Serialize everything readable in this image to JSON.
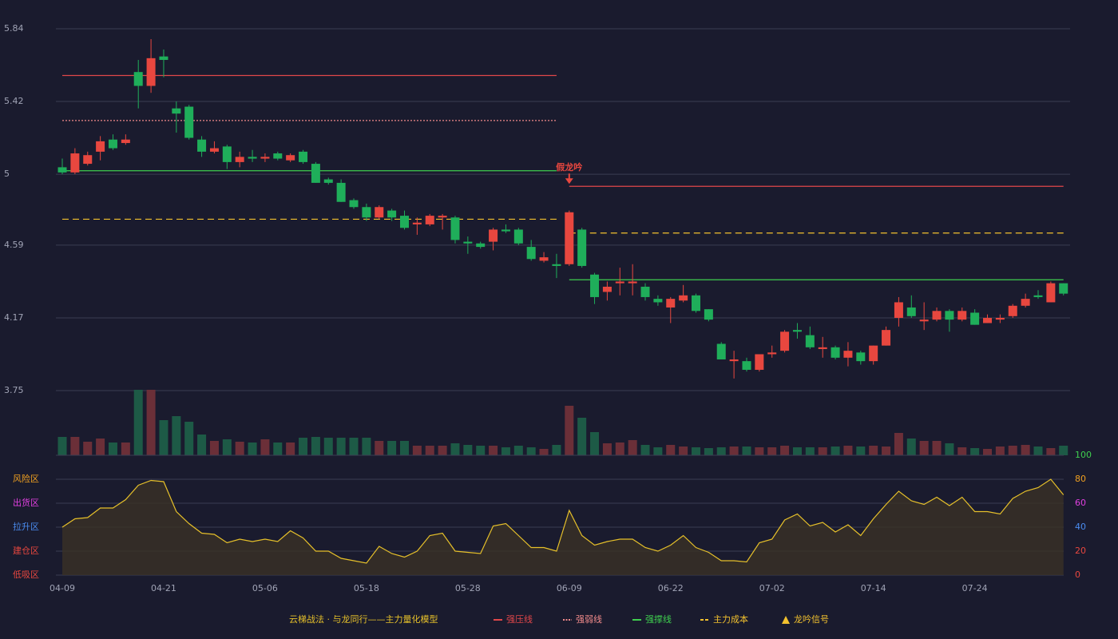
{
  "chart_data": [
    {
      "type": "candlestick",
      "categories": [
        "04-09",
        null,
        null,
        null,
        null,
        null,
        null,
        null,
        "04-21",
        null,
        null,
        null,
        null,
        null,
        null,
        null,
        "05-06",
        null,
        null,
        null,
        null,
        null,
        null,
        null,
        "05-18",
        null,
        null,
        null,
        null,
        null,
        null,
        null,
        "05-28",
        null,
        null,
        null,
        null,
        null,
        null,
        null,
        "06-09",
        null,
        null,
        null,
        null,
        null,
        null,
        null,
        "06-22",
        null,
        null,
        null,
        null,
        null,
        null,
        null,
        "07-02",
        null,
        null,
        null,
        null,
        null,
        null,
        null,
        "07-14",
        null,
        null,
        null,
        null,
        null,
        null,
        null,
        "07-24",
        null,
        null,
        null,
        null,
        null,
        null,
        null
      ],
      "open": [
        5.04,
        5.01,
        5.06,
        5.13,
        5.2,
        5.18,
        5.59,
        5.51,
        5.68,
        5.38,
        5.39,
        5.2,
        5.13,
        5.16,
        5.07,
        5.1,
        5.09,
        5.12,
        5.08,
        5.13,
        5.06,
        4.97,
        4.95,
        4.85,
        4.81,
        4.75,
        4.79,
        4.76,
        4.71,
        4.71,
        4.75,
        4.75,
        4.61,
        4.6,
        4.61,
        4.68,
        4.68,
        4.58,
        4.5,
        4.48,
        4.48,
        4.68,
        4.42,
        4.32,
        4.37,
        4.37,
        4.35,
        4.28,
        4.23,
        4.27,
        4.3,
        4.22,
        4.02,
        3.92,
        3.92,
        3.87,
        3.96,
        3.98,
        4.1,
        4.07,
        3.99,
        4.0,
        3.94,
        3.97,
        3.92,
        4.01,
        4.17,
        4.23,
        4.15,
        4.16,
        4.21,
        4.16,
        4.2,
        4.14,
        4.16,
        4.18,
        4.24,
        4.3,
        4.26,
        4.37
      ],
      "high": [
        5.09,
        5.15,
        5.13,
        5.22,
        5.23,
        5.23,
        5.66,
        5.78,
        5.72,
        5.42,
        5.4,
        5.22,
        5.19,
        5.17,
        5.13,
        5.14,
        5.12,
        5.13,
        5.12,
        5.14,
        5.07,
        4.98,
        4.97,
        4.86,
        4.83,
        4.82,
        4.8,
        4.79,
        4.75,
        4.77,
        4.77,
        4.76,
        4.64,
        4.61,
        4.69,
        4.71,
        4.69,
        4.62,
        4.55,
        4.54,
        4.79,
        4.69,
        4.43,
        4.38,
        4.46,
        4.48,
        4.37,
        4.3,
        4.29,
        4.36,
        4.31,
        4.22,
        4.03,
        3.98,
        3.94,
        3.96,
        4.01,
        4.1,
        4.14,
        4.12,
        4.06,
        4.01,
        4.03,
        3.98,
        4.01,
        4.12,
        4.29,
        4.3,
        4.26,
        4.23,
        4.22,
        4.23,
        4.22,
        4.19,
        4.19,
        4.25,
        4.31,
        4.33,
        4.38,
        4.37
      ],
      "low": [
        5.0,
        5.0,
        5.05,
        5.08,
        5.14,
        5.17,
        5.38,
        5.47,
        5.56,
        5.24,
        5.2,
        5.1,
        5.12,
        5.03,
        5.04,
        5.07,
        5.07,
        5.08,
        5.07,
        5.06,
        4.95,
        4.94,
        4.84,
        4.8,
        4.73,
        4.74,
        4.73,
        4.68,
        4.65,
        4.7,
        4.68,
        4.6,
        4.54,
        4.57,
        4.56,
        4.66,
        4.59,
        4.5,
        4.49,
        4.4,
        4.47,
        4.46,
        4.25,
        4.27,
        4.3,
        4.3,
        4.27,
        4.24,
        4.14,
        4.26,
        4.2,
        4.15,
        3.93,
        3.82,
        3.86,
        3.86,
        3.94,
        3.97,
        4.05,
        3.99,
        3.94,
        3.93,
        3.89,
        3.9,
        3.9,
        4.01,
        4.12,
        4.17,
        4.1,
        4.15,
        4.09,
        4.15,
        4.13,
        4.14,
        4.14,
        4.17,
        4.23,
        4.28,
        4.26,
        4.3
      ],
      "close": [
        5.01,
        5.12,
        5.11,
        5.19,
        5.15,
        5.2,
        5.51,
        5.67,
        5.66,
        5.35,
        5.21,
        5.13,
        5.15,
        5.07,
        5.1,
        5.09,
        5.1,
        5.09,
        5.11,
        5.07,
        4.95,
        4.95,
        4.84,
        4.81,
        4.75,
        4.81,
        4.75,
        4.69,
        4.72,
        4.76,
        4.76,
        4.62,
        4.6,
        4.58,
        4.68,
        4.67,
        4.6,
        4.51,
        4.52,
        4.47,
        4.78,
        4.47,
        4.29,
        4.35,
        4.38,
        4.38,
        4.29,
        4.26,
        4.28,
        4.3,
        4.21,
        4.16,
        3.93,
        3.93,
        3.87,
        3.96,
        3.97,
        4.09,
        4.09,
        4.0,
        4.0,
        3.94,
        3.98,
        3.92,
        4.01,
        4.1,
        4.26,
        4.18,
        4.16,
        4.21,
        4.16,
        4.21,
        4.13,
        4.17,
        4.17,
        4.24,
        4.28,
        4.29,
        4.37,
        4.31
      ],
      "volume": [
        23,
        23,
        17,
        21,
        16,
        16,
        82,
        82,
        44,
        49,
        42,
        26,
        18,
        20,
        17,
        16,
        20,
        16,
        16,
        22,
        23,
        22,
        22,
        22,
        22,
        18,
        18,
        18,
        12,
        12,
        12,
        15,
        13,
        12,
        12,
        10,
        12,
        10,
        8,
        13,
        62,
        47,
        29,
        15,
        16,
        19,
        13,
        10,
        13,
        11,
        10,
        9,
        10,
        11,
        11,
        10,
        10,
        12,
        10,
        10,
        10,
        11,
        12,
        11,
        12,
        11,
        28,
        21,
        18,
        18,
        15,
        10,
        9,
        8,
        11,
        12,
        13,
        11,
        9,
        12
      ],
      "up_color": "#e8473f",
      "down_color": "#1fae5a",
      "volume_up_color": "#6b2f38",
      "volume_down_color": "#1d5a46",
      "ylim": [
        3.75,
        5.84
      ],
      "yticks": [
        5.84,
        5.42,
        5.0,
        4.59,
        4.17,
        3.75
      ],
      "grid": true,
      "levels": [
        {
          "name": "强压线",
          "color": "#e0474a",
          "style": "solid",
          "segments": [
            {
              "start": 0,
              "end": 39,
              "value": 5.57
            },
            {
              "start": 40,
              "end": 79,
              "value": 4.93
            }
          ]
        },
        {
          "name": "强弱线",
          "color": "#f08a8a",
          "style": "dotted",
          "segments": [
            {
              "start": 0,
              "end": 39,
              "value": 5.31
            }
          ]
        },
        {
          "name": "强撑线",
          "color": "#3fcf4f",
          "style": "solid",
          "segments": [
            {
              "start": 0,
              "end": 39,
              "value": 5.02
            },
            {
              "start": 40,
              "end": 79,
              "value": 4.39
            }
          ]
        },
        {
          "name": "主力成本",
          "color": "#f2c12e",
          "style": "dashed",
          "segments": [
            {
              "start": 0,
              "end": 39,
              "value": 4.74
            },
            {
              "start": 40,
              "end": 79,
              "value": 4.66
            }
          ]
        }
      ],
      "signals": [
        {
          "name": "龙吟信号",
          "color": "#f2c12e",
          "points": [
            {
              "index": 40,
              "value": 4.93,
              "label": "假龙吟",
              "color": "#e8473f"
            }
          ]
        }
      ],
      "legend_title": "云梯战法 · 与龙同行——主力量化模型"
    },
    {
      "type": "line",
      "values": [
        40,
        47,
        48,
        56,
        56,
        63,
        75,
        79,
        78,
        53,
        43,
        35,
        34,
        27,
        30,
        28,
        30,
        28,
        37,
        31,
        20,
        20,
        14,
        12,
        10,
        24,
        18,
        15,
        20,
        33,
        35,
        20,
        19,
        18,
        41,
        43,
        33,
        23,
        23,
        20,
        54,
        33,
        25,
        28,
        30,
        30,
        23,
        20,
        25,
        33,
        23,
        19,
        12,
        12,
        11,
        27,
        30,
        46,
        51,
        41,
        44,
        36,
        42,
        33,
        47,
        59,
        70,
        62,
        59,
        65,
        58,
        65,
        53,
        53,
        51,
        64,
        70,
        73,
        80,
        67
      ],
      "color": "#e6c02a",
      "ylim": [
        0,
        100
      ],
      "yticks": [
        0,
        20,
        40,
        60,
        80,
        100
      ],
      "ytick_colors": [
        "#e8473f",
        "#e8473f",
        "#4a8cf0",
        "#e040e0",
        "#f0a020",
        "#3fcf4f"
      ],
      "zones": [
        {
          "value": 80,
          "label": "风险区",
          "color": "#f0a020"
        },
        {
          "value": 60,
          "label": "出货区",
          "color": "#e040e0"
        },
        {
          "value": 40,
          "label": "拉升区",
          "color": "#4a8cf0"
        },
        {
          "value": 20,
          "label": "建仓区",
          "color": "#e8473f"
        },
        {
          "value": 0,
          "label": "低吸区",
          "color": "#e8473f"
        }
      ]
    }
  ]
}
